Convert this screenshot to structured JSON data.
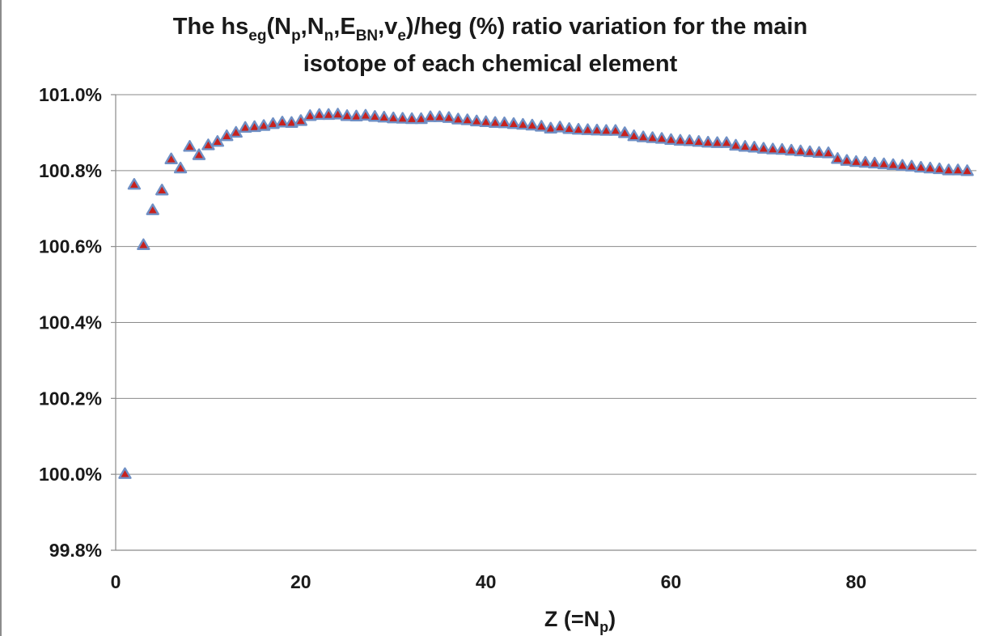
{
  "chart_data": {
    "type": "scatter",
    "title": {
      "line1_pre": "The hs",
      "line1_sub_eg": "eg",
      "line1_open": "(N",
      "line1_sub_p": "p",
      "line1_comma_n": ",N",
      "line1_sub_n": "n",
      "line1_comma_e": ",E",
      "line1_sub_bn": "BN",
      "line1_comma_v": ",v",
      "line1_sub_e": "e",
      "line1_post": ")/heg (%) ratio variation for the main",
      "line2": "isotope of each chemical element"
    },
    "xlabel": {
      "pre": "Z (=N",
      "sub": "p",
      "post": ")"
    },
    "ylabel": "",
    "xlim": [
      0,
      93
    ],
    "ylim": [
      99.8,
      101.0
    ],
    "xticks": [
      0,
      20,
      40,
      60,
      80
    ],
    "yticks": [
      "99.8%",
      "100.0%",
      "100.2%",
      "100.4%",
      "100.6%",
      "100.8%",
      "101.0%"
    ],
    "ytick_values": [
      99.8,
      100.0,
      100.2,
      100.4,
      100.6,
      100.8,
      101.0
    ],
    "grid": {
      "horizontal": true,
      "vertical": false
    },
    "legend": "none",
    "marker": "triangle",
    "colors": {
      "marker_fill": "#c8211d",
      "marker_edge": "#6f8fc4",
      "grid": "#8a8a8a"
    },
    "x": [
      1,
      2,
      3,
      4,
      5,
      6,
      7,
      8,
      9,
      10,
      11,
      12,
      13,
      14,
      15,
      16,
      17,
      18,
      19,
      20,
      21,
      22,
      23,
      24,
      25,
      26,
      27,
      28,
      29,
      30,
      31,
      32,
      33,
      34,
      35,
      36,
      37,
      38,
      39,
      40,
      41,
      42,
      43,
      44,
      45,
      46,
      47,
      48,
      49,
      50,
      51,
      52,
      53,
      54,
      55,
      56,
      57,
      58,
      59,
      60,
      61,
      62,
      63,
      64,
      65,
      66,
      67,
      68,
      69,
      70,
      71,
      72,
      73,
      74,
      75,
      76,
      77,
      78,
      79,
      80,
      81,
      82,
      83,
      84,
      85,
      86,
      87,
      88,
      89,
      90,
      91,
      92
    ],
    "y": [
      100.0,
      100.762,
      100.603,
      100.695,
      100.747,
      100.829,
      100.805,
      100.862,
      100.84,
      100.866,
      100.875,
      100.89,
      100.899,
      100.912,
      100.914,
      100.917,
      100.922,
      100.926,
      100.925,
      100.93,
      100.943,
      100.946,
      100.946,
      100.947,
      100.943,
      100.942,
      100.944,
      100.941,
      100.939,
      100.937,
      100.936,
      100.935,
      100.935,
      100.94,
      100.94,
      100.938,
      100.934,
      100.932,
      100.929,
      100.927,
      100.925,
      100.924,
      100.922,
      100.92,
      100.918,
      100.915,
      100.91,
      100.913,
      100.909,
      100.907,
      100.906,
      100.905,
      100.904,
      100.904,
      100.898,
      100.89,
      100.887,
      100.885,
      100.883,
      100.88,
      100.878,
      100.877,
      100.875,
      100.873,
      100.872,
      100.872,
      100.865,
      100.862,
      100.86,
      100.857,
      100.855,
      100.854,
      100.852,
      100.85,
      100.848,
      100.846,
      100.845,
      100.83,
      100.825,
      100.822,
      100.82,
      100.818,
      100.816,
      100.814,
      100.812,
      100.81,
      100.807,
      100.805,
      100.803,
      100.8,
      100.8,
      100.798
    ]
  }
}
